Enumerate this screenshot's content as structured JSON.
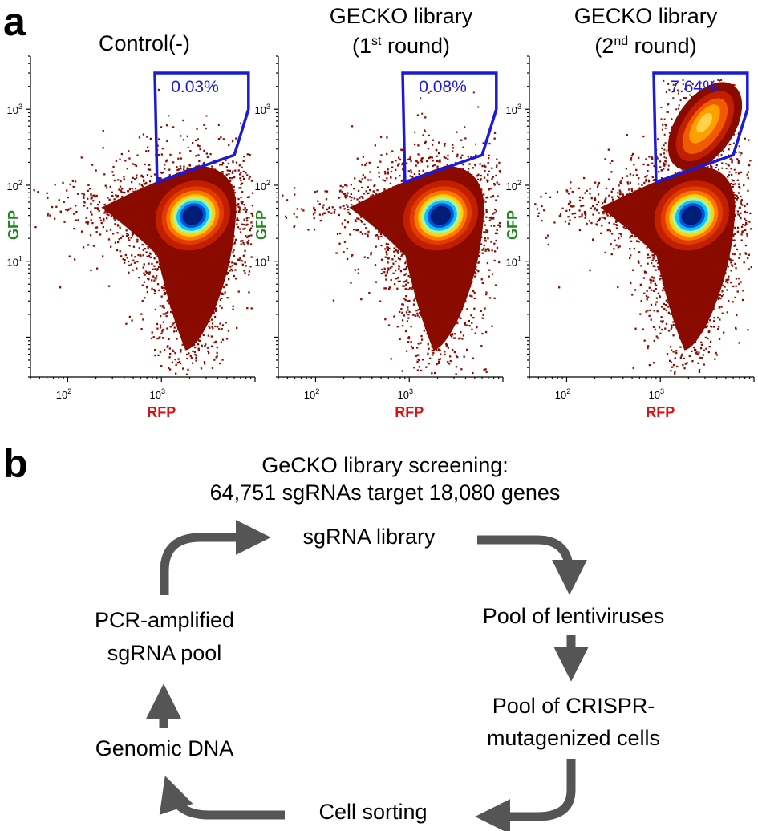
{
  "panel_a": {
    "letter": "a",
    "titles": [
      {
        "line1": "Control(-)",
        "line2": ""
      },
      {
        "line1": "GECKO library",
        "line2_open": "(1",
        "line2_sup": "st",
        "line2_close": " round)"
      },
      {
        "line1": "GECKO library",
        "line2_open": "(2",
        "line2_sup": "nd",
        "line2_close": " round)"
      }
    ],
    "x_label": "RFP",
    "y_label": "GFP",
    "x_ticks": [
      {
        "base": "10",
        "exp": "2"
      },
      {
        "base": "10",
        "exp": "3"
      }
    ],
    "y_ticks": [
      {
        "base": "10",
        "exp": "1"
      },
      {
        "base": "10",
        "exp": "2"
      },
      {
        "base": "10",
        "exp": "3"
      }
    ],
    "colors": {
      "gate": "#1a1adb",
      "gfp": "#1e8a1e",
      "rfp": "#e01010",
      "gate_text": "#1a1adb"
    }
  },
  "chart_data": [
    {
      "type": "scatter",
      "title": "Control(-)",
      "xlabel": "RFP",
      "ylabel": "GFP",
      "xscale": "log",
      "yscale": "log",
      "xlim": [
        40,
        10000
      ],
      "ylim": [
        0.3,
        5000
      ],
      "x_tick_values": [
        100,
        1000
      ],
      "y_tick_values": [
        10,
        100,
        1000
      ],
      "gate_vertices": [
        [
          850,
          3000
        ],
        [
          8500,
          3000
        ],
        [
          8500,
          1000
        ],
        [
          6000,
          250
        ],
        [
          900,
          110
        ]
      ],
      "gate_percent": "0.03%",
      "gate_fraction": 0.0003,
      "main_population_center": [
        2000,
        40
      ],
      "secondary_population": false
    },
    {
      "type": "scatter",
      "title": "GECKO library (1st round)",
      "xlabel": "RFP",
      "ylabel": "GFP",
      "xscale": "log",
      "yscale": "log",
      "xlim": [
        40,
        10000
      ],
      "ylim": [
        0.3,
        5000
      ],
      "x_tick_values": [
        100,
        1000
      ],
      "y_tick_values": [
        10,
        100,
        1000
      ],
      "gate_vertices": [
        [
          850,
          3000
        ],
        [
          8500,
          3000
        ],
        [
          8500,
          1000
        ],
        [
          6000,
          250
        ],
        [
          900,
          110
        ]
      ],
      "gate_percent": "0.08%",
      "gate_fraction": 0.0008,
      "main_population_center": [
        2000,
        40
      ],
      "secondary_population": false
    },
    {
      "type": "scatter",
      "title": "GECKO library (2nd round)",
      "xlabel": "RFP",
      "ylabel": "GFP",
      "xscale": "log",
      "yscale": "log",
      "xlim": [
        40,
        10000
      ],
      "ylim": [
        0.3,
        5000
      ],
      "x_tick_values": [
        100,
        1000
      ],
      "y_tick_values": [
        10,
        100,
        1000
      ],
      "gate_vertices": [
        [
          850,
          3000
        ],
        [
          8500,
          3000
        ],
        [
          8500,
          1000
        ],
        [
          6000,
          250
        ],
        [
          900,
          110
        ]
      ],
      "gate_percent": "7.64%",
      "gate_fraction": 0.0764,
      "main_population_center": [
        2000,
        40
      ],
      "secondary_population": true,
      "secondary_population_center": [
        3000,
        600
      ]
    }
  ],
  "panel_b": {
    "letter": "b",
    "subtitle_line1": "GeCKO library screening:",
    "subtitle_line2": "64,751 sgRNAs target 18,080 genes",
    "nodes": {
      "sgrna_library": "sgRNA library",
      "lentiviruses": "Pool of lentiviruses",
      "crispr_line1": "Pool of CRISPR-",
      "crispr_line2": "mutagenized cells",
      "cell_sorting": "Cell sorting",
      "genomic_dna": "Genomic DNA",
      "pcr_line1": "PCR-amplified",
      "pcr_line2": "sgRNA pool"
    },
    "arrow_color": "#555555"
  }
}
